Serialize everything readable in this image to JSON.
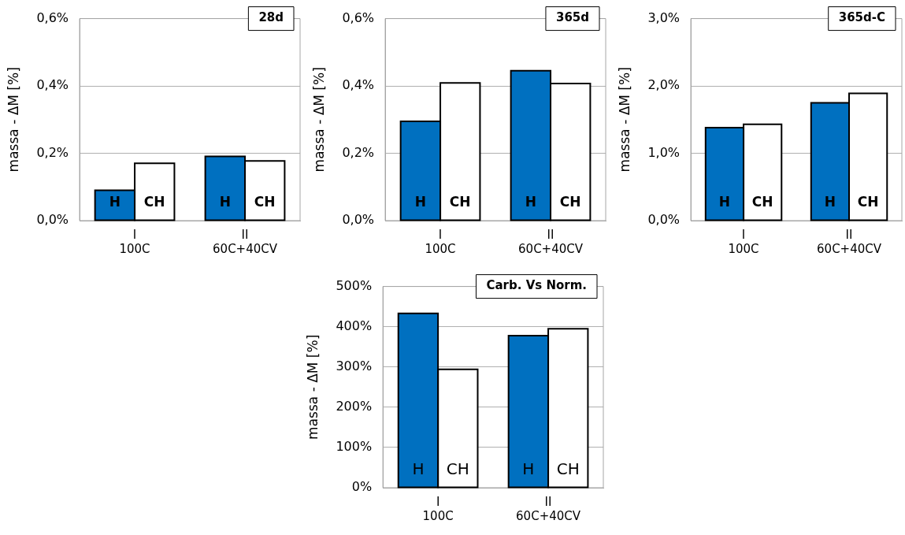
{
  "chart_data": [
    {
      "type": "bar",
      "title": "28d",
      "ylabel": "massa - ΔM [%]",
      "categories": [
        "I\n100C",
        "II\n60C+40CV"
      ],
      "series": [
        {
          "name": "H",
          "color": "#0070c0",
          "values": [
            0.09,
            0.191
          ]
        },
        {
          "name": "CH",
          "color": "#ffffff",
          "values": [
            0.17,
            0.177
          ]
        }
      ],
      "ylim": [
        0,
        0.6
      ],
      "yticks": [
        {
          "value": 0,
          "label": "0,0%"
        },
        {
          "value": 0.2,
          "label": "0,2%"
        },
        {
          "value": 0.4,
          "label": "0,4%"
        },
        {
          "value": 0.6,
          "label": "0,6%"
        }
      ],
      "grid": "y",
      "legend": false
    },
    {
      "type": "bar",
      "title": "365d",
      "ylabel": "massa - ΔM [%]",
      "categories": [
        "I\n100C",
        "II\n60C+40CV"
      ],
      "series": [
        {
          "name": "H",
          "color": "#0070c0",
          "values": [
            0.295,
            0.445
          ]
        },
        {
          "name": "CH",
          "color": "#ffffff",
          "values": [
            0.409,
            0.407
          ]
        }
      ],
      "ylim": [
        0,
        0.6
      ],
      "yticks": [
        {
          "value": 0,
          "label": "0,0%"
        },
        {
          "value": 0.2,
          "label": "0,2%"
        },
        {
          "value": 0.4,
          "label": "0,4%"
        },
        {
          "value": 0.6,
          "label": "0,6%"
        }
      ],
      "grid": "y",
      "legend": false
    },
    {
      "type": "bar",
      "title": "365d-C",
      "ylabel": "massa - ΔM [%]",
      "categories": [
        "I\n100C",
        "II\n60C+40CV"
      ],
      "series": [
        {
          "name": "H",
          "color": "#0070c0",
          "values": [
            1.38,
            1.75
          ]
        },
        {
          "name": "CH",
          "color": "#ffffff",
          "values": [
            1.43,
            1.89
          ]
        }
      ],
      "ylim": [
        0,
        3
      ],
      "yticks": [
        {
          "value": 0,
          "label": "0,0%"
        },
        {
          "value": 1,
          "label": "1,0%"
        },
        {
          "value": 2,
          "label": "2,0%"
        },
        {
          "value": 3,
          "label": "3,0%"
        }
      ],
      "grid": "y",
      "legend": false
    },
    {
      "type": "bar",
      "title": "Carb. Vs Norm.",
      "ylabel": "massa - ΔM [%]",
      "categories": [
        "I\n100C",
        "II\n60C+40CV"
      ],
      "series": [
        {
          "name": "H",
          "color": "#0070c0",
          "values": [
            433,
            378
          ]
        },
        {
          "name": "CH",
          "color": "#ffffff",
          "values": [
            294,
            395
          ]
        }
      ],
      "ylim": [
        0,
        500
      ],
      "yticks": [
        {
          "value": 0,
          "label": "0%"
        },
        {
          "value": 100,
          "label": "100%"
        },
        {
          "value": 200,
          "label": "200%"
        },
        {
          "value": 300,
          "label": "300%"
        },
        {
          "value": 400,
          "label": "400%"
        },
        {
          "value": 500,
          "label": "500%"
        }
      ],
      "grid": "y",
      "legend": false
    }
  ]
}
